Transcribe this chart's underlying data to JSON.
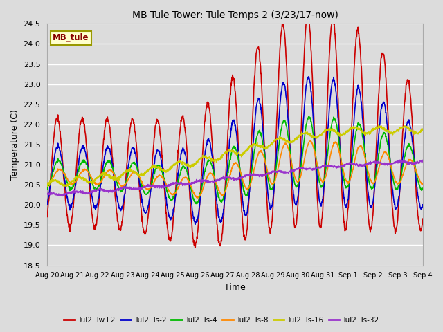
{
  "title": "MB Tule Tower: Tule Temps 2 (3/23/17-now)",
  "xlabel": "Time",
  "ylabel": "Temperature (C)",
  "ylim": [
    18.5,
    24.5
  ],
  "yticks": [
    18.5,
    19.0,
    19.5,
    20.0,
    20.5,
    21.0,
    21.5,
    22.0,
    22.5,
    23.0,
    23.5,
    24.0,
    24.5
  ],
  "xtick_labels": [
    "Aug 20",
    "Aug 21",
    "Aug 22",
    "Aug 23",
    "Aug 24",
    "Aug 25",
    "Aug 26",
    "Aug 27",
    "Aug 28",
    "Aug 29",
    "Aug 30",
    "Aug 31",
    "Sep 1",
    "Sep 2",
    "Sep 3",
    "Sep 4"
  ],
  "bg_color": "#dcdcdc",
  "plot_bg": "#dcdcdc",
  "grid_color": "#ffffff",
  "series": [
    {
      "name": "Tul2_Tw+2",
      "color": "#cc0000",
      "lw": 1.2
    },
    {
      "name": "Tul2_Ts-2",
      "color": "#0000cc",
      "lw": 1.2
    },
    {
      "name": "Tul2_Ts-4",
      "color": "#00bb00",
      "lw": 1.2
    },
    {
      "name": "Tul2_Ts-8",
      "color": "#ff8800",
      "lw": 1.2
    },
    {
      "name": "Tul2_Ts-16",
      "color": "#cccc00",
      "lw": 1.2
    },
    {
      "name": "Tul2_Ts-32",
      "color": "#9933cc",
      "lw": 1.2
    }
  ],
  "legend_box_color": "#ffffcc",
  "legend_box_edge": "#999900",
  "legend_text": "MB_tule",
  "legend_text_color": "#880000",
  "n_days": 15,
  "pts_per_day": 96
}
